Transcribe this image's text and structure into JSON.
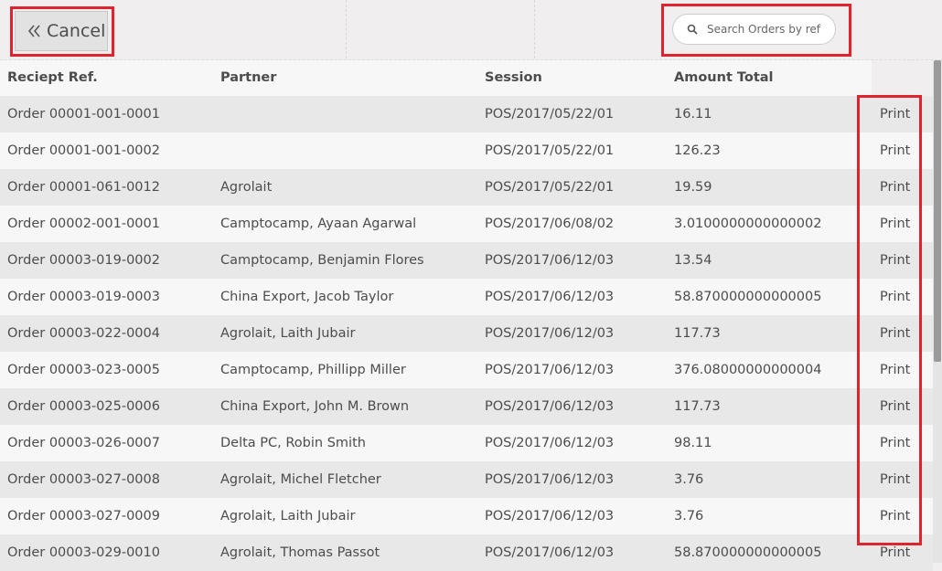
{
  "header": {
    "cancel": "Cancel",
    "search_placeholder": "Search Orders by ref"
  },
  "table": {
    "columns": [
      "Reciept Ref.",
      "Partner",
      "Session",
      "Amount Total"
    ],
    "rows": [
      [
        "Order 00001-001-0001",
        null,
        "POS/2017/05/22/01",
        "16.11",
        "Print"
      ],
      [
        "Order 00001-001-0002",
        null,
        "POS/2017/05/22/01",
        "126.23",
        "Print"
      ],
      [
        "Order 00001-061-0012",
        "Agrolait",
        "POS/2017/05/22/01",
        "19.59",
        "Print"
      ],
      [
        "Order 00002-001-0001",
        "Camptocamp, Ayaan Agarwal",
        "POS/2017/06/08/02",
        "3.0100000000000002",
        "Print"
      ],
      [
        "Order 00003-019-0002",
        "Camptocamp, Benjamin Flores",
        "POS/2017/06/12/03",
        "13.54",
        "Print"
      ],
      [
        "Order 00003-019-0003",
        "China Export, Jacob Taylor",
        "POS/2017/06/12/03",
        "58.870000000000005",
        "Print"
      ],
      [
        "Order 00003-022-0004",
        "Agrolait, Laith Jubair",
        "POS/2017/06/12/03",
        "117.73",
        "Print"
      ],
      [
        "Order 00003-023-0005",
        "Camptocamp, Phillipp Miller",
        "POS/2017/06/12/03",
        "376.08000000000004",
        "Print"
      ],
      [
        "Order 00003-025-0006",
        "China Export, John M. Brown",
        "POS/2017/06/12/03",
        "117.73",
        "Print"
      ],
      [
        "Order 00003-026-0007",
        "Delta PC, Robin Smith",
        "POS/2017/06/12/03",
        "98.11",
        "Print"
      ],
      [
        "Order 00003-027-0008",
        "Agrolait, Michel Fletcher",
        "POS/2017/06/12/03",
        "3.76",
        "Print"
      ],
      [
        "Order 00003-027-0009",
        "Agrolait, Laith Jubair",
        "POS/2017/06/12/03",
        "3.76",
        "Print"
      ],
      [
        "Order 00003-029-0010",
        "Agrolait, Thomas Passot",
        "POS/2017/06/12/03",
        "58.870000000000005",
        "Print"
      ]
    ]
  }
}
